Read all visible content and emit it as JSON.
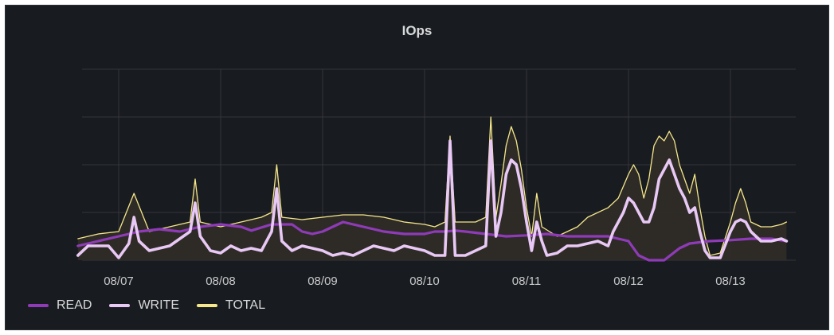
{
  "panel": {
    "title": "IOps"
  },
  "chart_data": {
    "type": "line",
    "title": "IOps",
    "x_ticks": [
      "08/07",
      "08/08",
      "08/09",
      "08/10",
      "08/11",
      "08/12",
      "08/13"
    ],
    "x_range": [
      "08/06 16:00",
      "08/13 18:00"
    ],
    "y_range": [
      0,
      4
    ],
    "y_grid_lines": 4,
    "grid": true,
    "legend_position": "bottom-left",
    "series": [
      {
        "name": "READ",
        "color": "#8f3bb8",
        "points": [
          [
            -0.4,
            0.3
          ],
          [
            -0.2,
            0.4
          ],
          [
            0,
            0.5
          ],
          [
            0.2,
            0.6
          ],
          [
            0.4,
            0.65
          ],
          [
            0.6,
            0.6
          ],
          [
            0.8,
            0.7
          ],
          [
            1,
            0.75
          ],
          [
            1.2,
            0.7
          ],
          [
            1.3,
            0.62
          ],
          [
            1.5,
            0.75
          ],
          [
            1.7,
            0.75
          ],
          [
            1.8,
            0.6
          ],
          [
            1.9,
            0.55
          ],
          [
            2,
            0.6
          ],
          [
            2.1,
            0.7
          ],
          [
            2.2,
            0.8
          ],
          [
            2.3,
            0.75
          ],
          [
            2.4,
            0.7
          ],
          [
            2.6,
            0.6
          ],
          [
            2.8,
            0.55
          ],
          [
            3,
            0.55
          ],
          [
            3.1,
            0.6
          ],
          [
            3.2,
            0.6
          ],
          [
            3.3,
            0.62
          ],
          [
            3.4,
            0.6
          ],
          [
            3.6,
            0.55
          ],
          [
            3.8,
            0.5
          ],
          [
            4,
            0.52
          ],
          [
            4.2,
            0.55
          ],
          [
            4.4,
            0.5
          ],
          [
            4.6,
            0.5
          ],
          [
            4.8,
            0.5
          ],
          [
            5,
            0.4
          ],
          [
            5.1,
            0.1
          ],
          [
            5.2,
            0
          ],
          [
            5.35,
            0
          ],
          [
            5.5,
            0.25
          ],
          [
            5.6,
            0.35
          ],
          [
            5.8,
            0.4
          ],
          [
            6,
            0.42
          ],
          [
            6.2,
            0.45
          ],
          [
            6.4,
            0.45
          ],
          [
            6.55,
            0.4
          ]
        ]
      },
      {
        "name": "WRITE",
        "color": "#e8c8f4",
        "points": [
          [
            -0.4,
            0.1
          ],
          [
            -0.3,
            0.3
          ],
          [
            -0.1,
            0.3
          ],
          [
            0,
            0.05
          ],
          [
            0.1,
            0.35
          ],
          [
            0.15,
            0.9
          ],
          [
            0.2,
            0.4
          ],
          [
            0.3,
            0.2
          ],
          [
            0.5,
            0.3
          ],
          [
            0.6,
            0.45
          ],
          [
            0.7,
            0.6
          ],
          [
            0.75,
            1.2
          ],
          [
            0.8,
            0.5
          ],
          [
            0.9,
            0.2
          ],
          [
            1,
            0.15
          ],
          [
            1.1,
            0.3
          ],
          [
            1.2,
            0.2
          ],
          [
            1.3,
            0.25
          ],
          [
            1.4,
            0.2
          ],
          [
            1.5,
            0.6
          ],
          [
            1.55,
            1.5
          ],
          [
            1.6,
            0.4
          ],
          [
            1.7,
            0.2
          ],
          [
            1.8,
            0.3
          ],
          [
            1.9,
            0.25
          ],
          [
            2,
            0.2
          ],
          [
            2.1,
            0.1
          ],
          [
            2.2,
            0.15
          ],
          [
            2.3,
            0.1
          ],
          [
            2.4,
            0.2
          ],
          [
            2.5,
            0.3
          ],
          [
            2.6,
            0.25
          ],
          [
            2.7,
            0.2
          ],
          [
            2.8,
            0.3
          ],
          [
            2.9,
            0.25
          ],
          [
            3,
            0.2
          ],
          [
            3.1,
            0.1
          ],
          [
            3.2,
            0.1
          ],
          [
            3.25,
            2.5
          ],
          [
            3.3,
            0.1
          ],
          [
            3.4,
            0.1
          ],
          [
            3.5,
            0.2
          ],
          [
            3.6,
            0.3
          ],
          [
            3.65,
            2.5
          ],
          [
            3.7,
            0.5
          ],
          [
            3.75,
            1.0
          ],
          [
            3.8,
            1.8
          ],
          [
            3.85,
            2.1
          ],
          [
            3.9,
            2.0
          ],
          [
            3.95,
            1.5
          ],
          [
            4.0,
            0.8
          ],
          [
            4.05,
            0.2
          ],
          [
            4.1,
            0.8
          ],
          [
            4.15,
            0.4
          ],
          [
            4.2,
            0.1
          ],
          [
            4.3,
            0.15
          ],
          [
            4.4,
            0.3
          ],
          [
            4.5,
            0.3
          ],
          [
            4.6,
            0.35
          ],
          [
            4.7,
            0.4
          ],
          [
            4.8,
            0.3
          ],
          [
            4.85,
            0.6
          ],
          [
            4.9,
            0.8
          ],
          [
            4.95,
            1.0
          ],
          [
            5.0,
            1.3
          ],
          [
            5.05,
            1.2
          ],
          [
            5.1,
            1.0
          ],
          [
            5.15,
            0.8
          ],
          [
            5.2,
            0.8
          ],
          [
            5.25,
            1.1
          ],
          [
            5.3,
            1.7
          ],
          [
            5.35,
            1.9
          ],
          [
            5.4,
            2.1
          ],
          [
            5.45,
            1.8
          ],
          [
            5.5,
            1.5
          ],
          [
            5.55,
            1.3
          ],
          [
            5.6,
            1.0
          ],
          [
            5.65,
            1.1
          ],
          [
            5.7,
            0.6
          ],
          [
            5.75,
            0.2
          ],
          [
            5.8,
            0.05
          ],
          [
            5.9,
            0.05
          ],
          [
            6.0,
            0.6
          ],
          [
            6.05,
            0.8
          ],
          [
            6.1,
            0.85
          ],
          [
            6.15,
            0.8
          ],
          [
            6.2,
            0.6
          ],
          [
            6.3,
            0.4
          ],
          [
            6.4,
            0.4
          ],
          [
            6.5,
            0.45
          ],
          [
            6.55,
            0.4
          ]
        ]
      },
      {
        "name": "TOTAL",
        "color": "#f5e78b",
        "points": [
          [
            -0.4,
            0.45
          ],
          [
            -0.2,
            0.55
          ],
          [
            0,
            0.6
          ],
          [
            0.15,
            1.4
          ],
          [
            0.3,
            0.6
          ],
          [
            0.5,
            0.7
          ],
          [
            0.7,
            0.8
          ],
          [
            0.75,
            1.7
          ],
          [
            0.8,
            0.8
          ],
          [
            1,
            0.7
          ],
          [
            1.2,
            0.8
          ],
          [
            1.4,
            0.9
          ],
          [
            1.5,
            1.0
          ],
          [
            1.55,
            2.0
          ],
          [
            1.6,
            0.9
          ],
          [
            1.8,
            0.85
          ],
          [
            2,
            0.9
          ],
          [
            2.2,
            0.95
          ],
          [
            2.4,
            0.95
          ],
          [
            2.6,
            0.9
          ],
          [
            2.8,
            0.8
          ],
          [
            3,
            0.75
          ],
          [
            3.1,
            0.7
          ],
          [
            3.2,
            0.8
          ],
          [
            3.25,
            2.6
          ],
          [
            3.3,
            0.8
          ],
          [
            3.5,
            0.8
          ],
          [
            3.6,
            0.9
          ],
          [
            3.65,
            3.0
          ],
          [
            3.7,
            0.9
          ],
          [
            3.75,
            1.6
          ],
          [
            3.8,
            2.4
          ],
          [
            3.85,
            2.8
          ],
          [
            3.9,
            2.5
          ],
          [
            3.95,
            1.9
          ],
          [
            4.0,
            1.1
          ],
          [
            4.05,
            0.5
          ],
          [
            4.1,
            1.4
          ],
          [
            4.15,
            0.7
          ],
          [
            4.3,
            0.5
          ],
          [
            4.5,
            0.7
          ],
          [
            4.6,
            0.9
          ],
          [
            4.8,
            1.1
          ],
          [
            4.9,
            1.3
          ],
          [
            5.0,
            1.8
          ],
          [
            5.05,
            2.0
          ],
          [
            5.1,
            1.8
          ],
          [
            5.15,
            1.3
          ],
          [
            5.2,
            1.7
          ],
          [
            5.25,
            2.4
          ],
          [
            5.3,
            2.6
          ],
          [
            5.35,
            2.5
          ],
          [
            5.4,
            2.7
          ],
          [
            5.45,
            2.5
          ],
          [
            5.5,
            2.0
          ],
          [
            5.55,
            1.7
          ],
          [
            5.6,
            1.4
          ],
          [
            5.65,
            1.8
          ],
          [
            5.7,
            1.1
          ],
          [
            5.75,
            0.5
          ],
          [
            5.8,
            0.1
          ],
          [
            5.9,
            0.15
          ],
          [
            6.0,
            0.8
          ],
          [
            6.05,
            1.2
          ],
          [
            6.1,
            1.5
          ],
          [
            6.15,
            1.2
          ],
          [
            6.2,
            0.8
          ],
          [
            6.3,
            0.7
          ],
          [
            6.4,
            0.7
          ],
          [
            6.5,
            0.75
          ],
          [
            6.55,
            0.8
          ]
        ]
      }
    ]
  }
}
